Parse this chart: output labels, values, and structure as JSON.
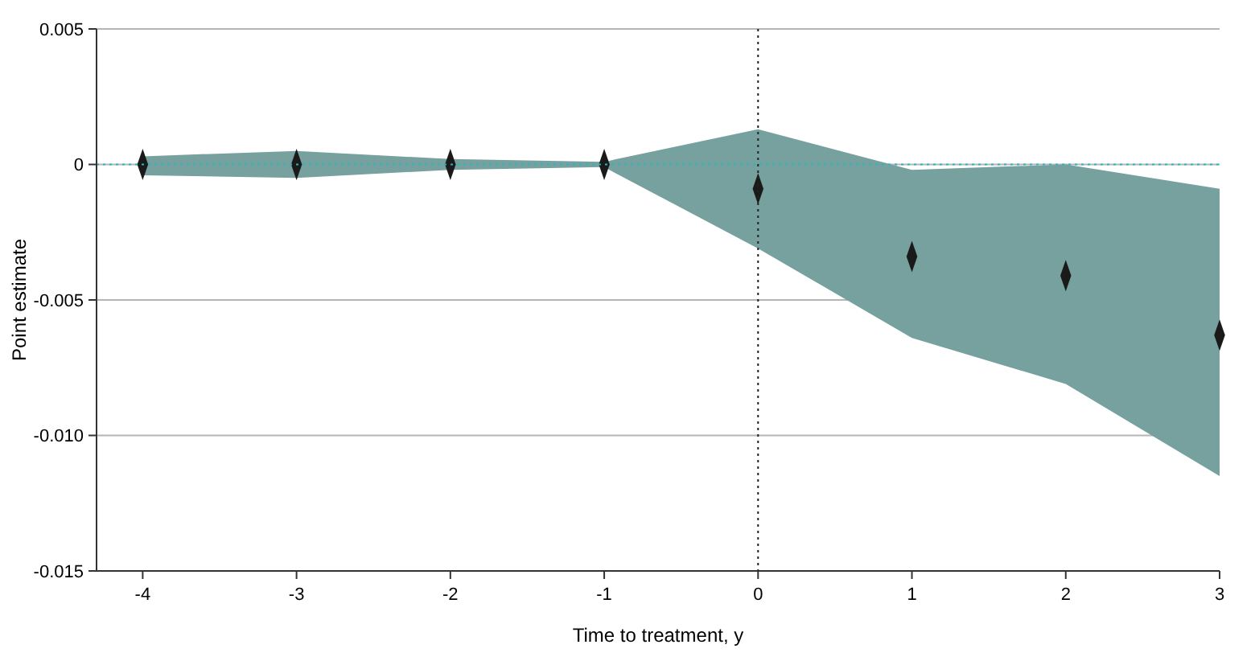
{
  "chart_data": {
    "type": "scatter",
    "xlabel": "Time to treatment, y",
    "ylabel": "Point estimate",
    "x": [
      -4,
      -3,
      -2,
      -1,
      0,
      1,
      2,
      3
    ],
    "series": [
      {
        "color": "#1a1a1a",
        "values": [
          0,
          0,
          0,
          0,
          -0.0009,
          -0.0034,
          -0.0041,
          -0.0063
        ],
        "lower": [
          -0.0004,
          -0.0005,
          -0.0002,
          -0.0001,
          -0.0031,
          -0.0064,
          -0.0081,
          -0.0115
        ],
        "upper": [
          0.0003,
          0.0005,
          0.0002,
          0.0001,
          0.0013,
          -0.0002,
          0,
          -0.0009
        ]
      }
    ],
    "marker": "diamond",
    "grid": "y",
    "xlim": [
      -4.3,
      3
    ],
    "xticks": [
      -4,
      -3,
      -2,
      -1,
      0,
      1,
      2,
      3
    ],
    "ylim": [
      -0.015,
      0.005
    ],
    "yticks": [
      {
        "value": -0.015,
        "label": "-0.015"
      },
      {
        "value": -0.01,
        "label": "-0.010"
      },
      {
        "value": -0.005,
        "label": "-0.005"
      },
      {
        "value": 0,
        "label": "0"
      },
      {
        "value": 0.005,
        "label": "0.005"
      }
    ],
    "ref_lines": [
      {
        "axis": "y",
        "value": 0,
        "color": "#29b6c6",
        "line_style": "dotted"
      },
      {
        "axis": "x",
        "value": 0,
        "color": "#222222",
        "line_style": "dotted"
      }
    ]
  }
}
